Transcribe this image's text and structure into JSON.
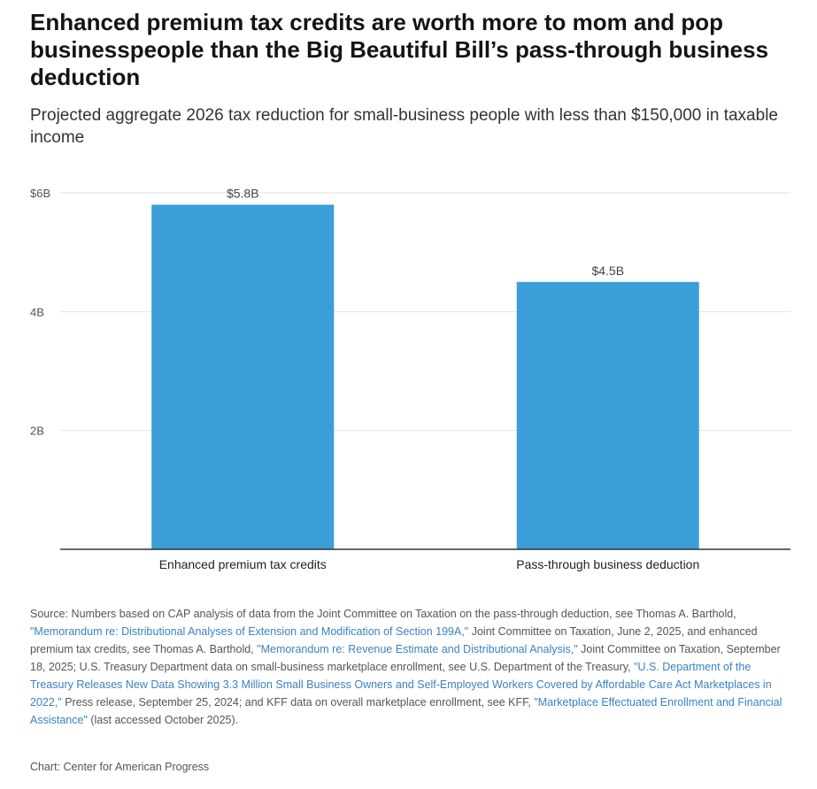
{
  "title": "Enhanced premium tax credits are worth more to mom and pop businesspeople than the Big Beautiful Bill’s pass-through business deduction",
  "subtitle": "Projected aggregate 2026 tax reduction for small-business people with less than $150,000 in taxable income",
  "colors": {
    "bar": "#3b9ed8",
    "grid": "#e2e2e2",
    "axis": "#333333",
    "link": "#3b82c4"
  },
  "chart_data": {
    "type": "bar",
    "categories": [
      "Enhanced premium tax credits",
      "Pass-through business deduction"
    ],
    "values": [
      5.8,
      4.5
    ],
    "data_labels": [
      "$5.8B",
      "$4.5B"
    ],
    "ylim": [
      0,
      6
    ],
    "yticks": [
      2,
      4,
      6
    ],
    "ytick_labels": [
      "2B",
      "4B",
      "$6B"
    ],
    "grid": true,
    "xlabel": "",
    "ylabel": ""
  },
  "source": {
    "t1": "Source: Numbers based on CAP analysis of data from the Joint Committee on Taxation on the pass-through deduction, see Thomas A. Barthold, ",
    "l1": "\"Memorandum re: Distributional Analyses of Extension and Modification of Section 199A,\"",
    "t2": " Joint Committee on Taxation, June 2, 2025, and enhanced premium tax credits, see Thomas A. Barthold, ",
    "l2": "\"Memorandum re: Revenue Estimate and Distributional Analysis,\"",
    "t3": " Joint Committee on Taxation, September 18, 2025; U.S. Treasury Department data on small-business marketplace enrollment, see U.S. Department of the Treasury, ",
    "l3": "\"U.S. Department of the Treasury Releases New Data Showing 3.3 Million Small Business Owners and Self-Employed Workers Covered by Affordable Care Act Marketplaces in 2022,\"",
    "t4": " Press release, September 25, 2024; and KFF data on overall marketplace enrollment, see KFF, ",
    "l4": "\"Marketplace Effectuated Enrollment and Financial Assistance\"",
    "t5": " (last accessed October 2025)."
  },
  "credit": "Chart: Center for American Progress"
}
